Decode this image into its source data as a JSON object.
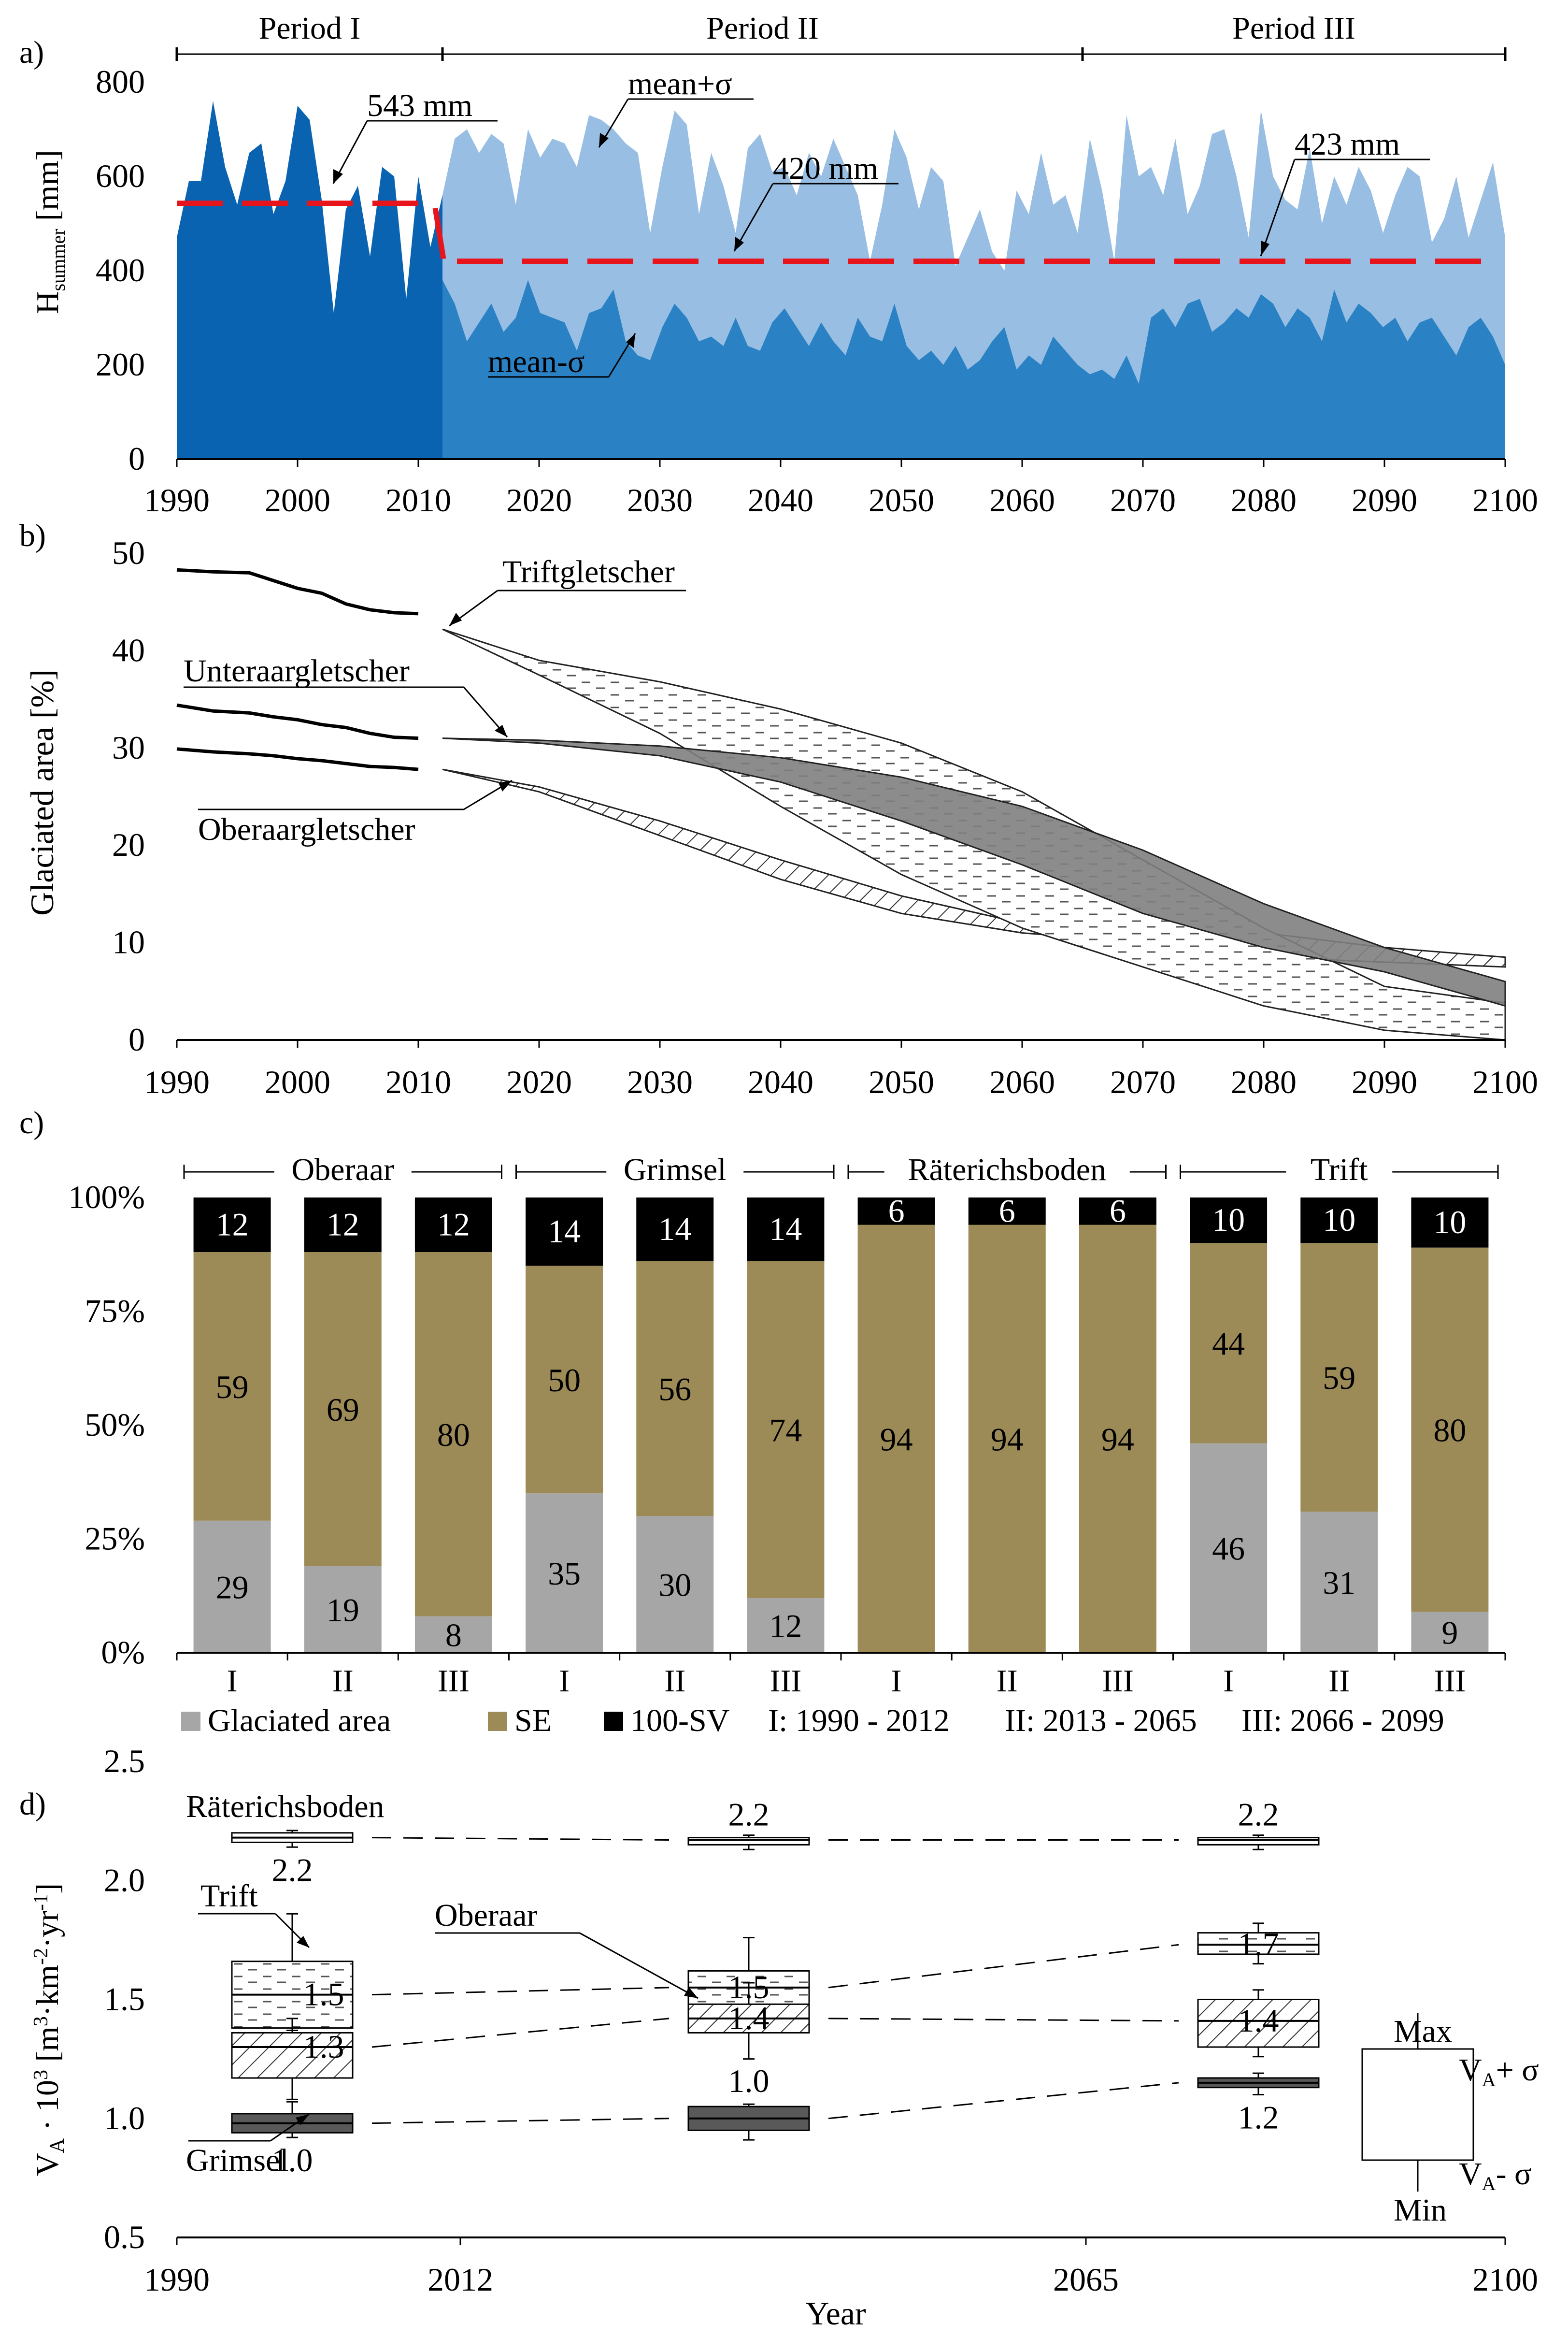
{
  "colors": {
    "dark_blue": "#0a63b1",
    "mid_blue": "#2a82c4",
    "light_blue": "#98bfe3",
    "red_mean": "#e8141b",
    "glacier_gray": "#a6a6a6",
    "se_olive": "#9c8b56",
    "sv_black": "#000000",
    "band_dark": "#808080",
    "box_dark": "#595959"
  },
  "chart_data": [
    {
      "panel_label": "a)",
      "type": "area",
      "xlim": [
        1990,
        2100
      ],
      "ylim": [
        0,
        800
      ],
      "xticks": [
        "1990",
        "2000",
        "2010",
        "2020",
        "2030",
        "2040",
        "2050",
        "2060",
        "2070",
        "2080",
        "2090",
        "2100"
      ],
      "yticks": [
        "0",
        "200",
        "400",
        "600",
        "800"
      ],
      "ylabel_main": "H",
      "ylabel_sub": "summer",
      "ylabel_unit": " [mm]",
      "periods": [
        {
          "label": "Period I",
          "start": 1990,
          "end": 2012
        },
        {
          "label": "Period II",
          "start": 2012,
          "end": 2065
        },
        {
          "label": "Period III",
          "start": 2065,
          "end": 2100
        }
      ],
      "observed_years": [
        1990,
        2011
      ],
      "observed": [
        470,
        590,
        590,
        760,
        620,
        540,
        650,
        670,
        520,
        590,
        750,
        720,
        550,
        310,
        530,
        580,
        430,
        620,
        600,
        340,
        600,
        450
      ],
      "scenario_years": [
        2012,
        2099
      ],
      "mean_plus_sigma": [
        560,
        680,
        700,
        650,
        690,
        670,
        540,
        700,
        640,
        680,
        670,
        620,
        730,
        720,
        700,
        670,
        650,
        480,
        620,
        740,
        710,
        520,
        650,
        580,
        480,
        660,
        690,
        610,
        620,
        560,
        650,
        600,
        680,
        620,
        560,
        420,
        540,
        700,
        640,
        530,
        620,
        590,
        410,
        470,
        530,
        440,
        400,
        570,
        520,
        650,
        540,
        560,
        480,
        680,
        570,
        420,
        730,
        600,
        620,
        560,
        680,
        520,
        580,
        690,
        700,
        600,
        470,
        740,
        600,
        550,
        530,
        660,
        500,
        600,
        540,
        620,
        570,
        480,
        560,
        620,
        600,
        460,
        510,
        600,
        470,
        550,
        630,
        470
      ],
      "mean_minus_sigma": [
        380,
        330,
        250,
        290,
        330,
        270,
        300,
        380,
        310,
        300,
        290,
        230,
        310,
        320,
        360,
        250,
        220,
        210,
        280,
        330,
        300,
        250,
        260,
        240,
        300,
        240,
        230,
        290,
        320,
        280,
        240,
        290,
        250,
        220,
        300,
        260,
        250,
        330,
        240,
        210,
        230,
        200,
        240,
        190,
        210,
        250,
        280,
        190,
        220,
        200,
        260,
        230,
        200,
        180,
        190,
        170,
        220,
        160,
        300,
        320,
        280,
        330,
        340,
        270,
        290,
        320,
        300,
        350,
        330,
        280,
        320,
        300,
        250,
        360,
        290,
        330,
        310,
        280,
        300,
        250,
        290,
        300,
        260,
        220,
        280,
        300,
        260,
        200
      ],
      "mean_lines": [
        {
          "start": 1990,
          "end": 2012,
          "value": 543
        },
        {
          "start": 2012,
          "end": 2100,
          "value": 420
        }
      ],
      "annotations": [
        "543 mm",
        "420 mm",
        "423 mm",
        "mean+σ",
        "mean-σ"
      ]
    },
    {
      "panel_label": "b)",
      "type": "line",
      "xlim": [
        1990,
        2100
      ],
      "ylim": [
        0,
        50
      ],
      "xticks": [
        "1990",
        "2000",
        "2010",
        "2020",
        "2030",
        "2040",
        "2050",
        "2060",
        "2070",
        "2080",
        "2090",
        "2100"
      ],
      "yticks": [
        "0",
        "10",
        "20",
        "30",
        "40",
        "50"
      ],
      "ylabel": "Glaciated area [%]",
      "series": [
        {
          "name": "Triftgletscher",
          "observed_x": [
            1990,
            1993,
            1996,
            1998,
            2000,
            2002,
            2004,
            2006,
            2008,
            2010
          ],
          "observed_y": [
            48.3,
            48.1,
            48.0,
            47.2,
            46.4,
            45.9,
            44.8,
            44.2,
            43.9,
            43.8
          ],
          "band_x": [
            2012,
            2020,
            2030,
            2040,
            2050,
            2060,
            2070,
            2080,
            2090,
            2100
          ],
          "band_upper": [
            42.2,
            39.0,
            36.8,
            34.0,
            30.5,
            25.5,
            18.5,
            11.5,
            5.5,
            3.8
          ],
          "band_lower": [
            42.2,
            37.5,
            31.5,
            24.0,
            17.0,
            11.5,
            7.5,
            3.5,
            1.0,
            0.0
          ],
          "pattern": "dashed"
        },
        {
          "name": "Unteraargletscher",
          "observed_x": [
            1990,
            1993,
            1996,
            1998,
            2000,
            2002,
            2004,
            2006,
            2008,
            2010
          ],
          "observed_y": [
            34.4,
            33.8,
            33.6,
            33.2,
            32.9,
            32.4,
            32.1,
            31.5,
            31.1,
            31.0
          ],
          "band_x": [
            2012,
            2020,
            2030,
            2040,
            2050,
            2060,
            2070,
            2080,
            2090,
            2100
          ],
          "band_upper": [
            31.0,
            30.8,
            30.2,
            29.0,
            27.0,
            24.0,
            19.5,
            14.0,
            9.5,
            6.0
          ],
          "band_lower": [
            31.0,
            30.5,
            29.2,
            26.5,
            22.5,
            18.0,
            13.0,
            9.5,
            7.0,
            3.5
          ],
          "pattern": "solid-dark"
        },
        {
          "name": "Oberaargletscher",
          "observed_x": [
            1990,
            1993,
            1996,
            1998,
            2000,
            2002,
            2004,
            2006,
            2008,
            2010
          ],
          "observed_y": [
            29.9,
            29.6,
            29.4,
            29.2,
            28.9,
            28.7,
            28.4,
            28.1,
            28.0,
            27.8
          ],
          "band_x": [
            2012,
            2020,
            2030,
            2040,
            2050,
            2060,
            2070,
            2080,
            2090,
            2100
          ],
          "band_upper": [
            27.8,
            26.0,
            22.5,
            18.5,
            14.8,
            12.0,
            11.5,
            11.0,
            9.5,
            8.5
          ],
          "band_lower": [
            27.8,
            25.5,
            21.0,
            16.5,
            13.0,
            11.0,
            10.0,
            8.5,
            8.0,
            7.5
          ],
          "pattern": "hatched"
        }
      ]
    },
    {
      "panel_label": "c)",
      "type": "bar",
      "ylim": [
        0,
        100
      ],
      "yticks": [
        "0%",
        "25%",
        "50%",
        "75%",
        "100%"
      ],
      "groups": [
        {
          "name": "Oberaar",
          "bars": [
            {
              "period": "I",
              "glaciated": 29,
              "se": 59,
              "sv": 12
            },
            {
              "period": "II",
              "glaciated": 19,
              "se": 69,
              "sv": 12
            },
            {
              "period": "III",
              "glaciated": 8,
              "se": 80,
              "sv": 12
            }
          ]
        },
        {
          "name": "Grimsel",
          "bars": [
            {
              "period": "I",
              "glaciated": 35,
              "se": 50,
              "sv": 14
            },
            {
              "period": "II",
              "glaciated": 30,
              "se": 56,
              "sv": 14
            },
            {
              "period": "III",
              "glaciated": 12,
              "se": 74,
              "sv": 14
            }
          ]
        },
        {
          "name": "Räterichsboden",
          "bars": [
            {
              "period": "I",
              "glaciated": 0,
              "se": 94,
              "sv": 6
            },
            {
              "period": "II",
              "glaciated": 0,
              "se": 94,
              "sv": 6
            },
            {
              "period": "III",
              "glaciated": 0,
              "se": 94,
              "sv": 6
            }
          ]
        },
        {
          "name": "Trift",
          "bars": [
            {
              "period": "I",
              "glaciated": 46,
              "se": 44,
              "sv": 10
            },
            {
              "period": "II",
              "glaciated": 31,
              "se": 59,
              "sv": 10
            },
            {
              "period": "III",
              "glaciated": 9,
              "se": 80,
              "sv": 10
            }
          ]
        }
      ],
      "legend": [
        "Glaciated area",
        "SE",
        "100-SV",
        "I: 1990 - 2012",
        "II: 2013 - 2065",
        "III: 2066 - 2099"
      ]
    },
    {
      "panel_label": "d)",
      "type": "box",
      "ylim": [
        0.5,
        2.5
      ],
      "yticks": [
        "0.5",
        "1.0",
        "1.5",
        "2.0",
        "2.5"
      ],
      "xticks": [
        "1990",
        "2012",
        "2065",
        "2100"
      ],
      "xlabel": "Year",
      "ylabel": "V_A · 10³ [m³·km⁻²·yr⁻¹]",
      "ylabel_parts": [
        "V",
        "A",
        " · 10",
        "3",
        " [m",
        "3",
        "·km",
        "-2",
        "·yr",
        "-1",
        "]"
      ],
      "boxes": [
        {
          "name": "Räterichsboden",
          "period": "I",
          "min": 2.14,
          "q1": 2.16,
          "mean": 2.18,
          "q3": 2.2,
          "max": 2.21,
          "label": "2.2"
        },
        {
          "name": "Räterichsboden",
          "period": "II",
          "min": 2.13,
          "q1": 2.15,
          "mean": 2.17,
          "q3": 2.18,
          "max": 2.19,
          "label": "2.2"
        },
        {
          "name": "Räterichsboden",
          "period": "III",
          "min": 2.13,
          "q1": 2.15,
          "mean": 2.17,
          "q3": 2.18,
          "max": 2.19,
          "label": "2.2"
        },
        {
          "name": "Trift",
          "period": "I",
          "min": 1.37,
          "q1": 1.38,
          "mean": 1.52,
          "q3": 1.66,
          "max": 1.86,
          "label": "1.5"
        },
        {
          "name": "Trift",
          "period": "II",
          "min": 1.45,
          "q1": 1.47,
          "mean": 1.55,
          "q3": 1.62,
          "max": 1.76,
          "label": "1.5"
        },
        {
          "name": "Trift",
          "period": "III",
          "min": 1.65,
          "q1": 1.69,
          "mean": 1.73,
          "q3": 1.78,
          "max": 1.82,
          "label": "1.7"
        },
        {
          "name": "Oberaar",
          "period": "I",
          "min": 1.08,
          "q1": 1.17,
          "mean": 1.3,
          "q3": 1.36,
          "max": 1.42,
          "label": "1.3"
        },
        {
          "name": "Oberaar",
          "period": "II",
          "min": 1.25,
          "q1": 1.36,
          "mean": 1.42,
          "q3": 1.48,
          "max": 1.57,
          "label": "1.4"
        },
        {
          "name": "Oberaar",
          "period": "III",
          "min": 1.26,
          "q1": 1.3,
          "mean": 1.41,
          "q3": 1.5,
          "max": 1.54,
          "label": "1.4"
        },
        {
          "name": "Grimsel",
          "period": "I",
          "min": 0.92,
          "q1": 0.94,
          "mean": 0.98,
          "q3": 1.02,
          "max": 1.07,
          "label": "1.0"
        },
        {
          "name": "Grimsel",
          "period": "II",
          "min": 0.91,
          "q1": 0.95,
          "mean": 1.0,
          "q3": 1.05,
          "max": 1.06,
          "label": "1.0"
        },
        {
          "name": "Grimsel",
          "period": "III",
          "min": 1.1,
          "q1": 1.13,
          "mean": 1.15,
          "q3": 1.17,
          "max": 1.19,
          "label": "1.2"
        }
      ],
      "box_legend": {
        "max": "Max",
        "plus": "V",
        "plus_sub": "A",
        "plus_tail": "+ σ",
        "minus": "V",
        "minus_sub": "A",
        "minus_tail": "- σ",
        "min": "Min"
      },
      "series_labels": [
        "Räterichsboden",
        "Trift",
        "Oberaar",
        "Grimsel"
      ]
    }
  ]
}
